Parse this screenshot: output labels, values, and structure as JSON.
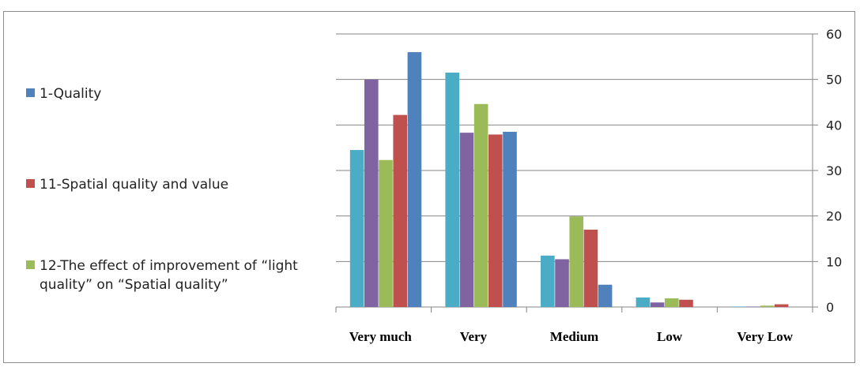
{
  "chart_data": {
    "type": "bar",
    "title": "",
    "xlabel": "",
    "ylabel": "",
    "categories": [
      "Very much",
      "Very",
      "Medium",
      "Low",
      "Very Low"
    ],
    "y_axis_position": "right",
    "ylim": [
      0,
      60
    ],
    "yticks": [
      0,
      10,
      20,
      30,
      40,
      50,
      60
    ],
    "grid": true,
    "legend_position": "left",
    "series": [
      {
        "name": "",
        "color": "#4BACC6",
        "values": [
          34.5,
          51.5,
          11.3,
          2.1,
          0.1
        ]
      },
      {
        "name": "",
        "color": "#8064A2",
        "values": [
          50,
          38.3,
          10.5,
          1,
          0.1
        ]
      },
      {
        "name": "12-The effect of improvement of “light quality” on “Spatial quality”",
        "color": "#9BBB59",
        "values": [
          32.3,
          44.6,
          19.9,
          1.9,
          0.3
        ]
      },
      {
        "name": "11-Spatial quality and value",
        "color": "#C0504D",
        "values": [
          42.2,
          37.9,
          17,
          1.6,
          0.6
        ]
      },
      {
        "name": "1-Quality",
        "color": "#4F81BD",
        "values": [
          56,
          38.5,
          4.9,
          0,
          0
        ]
      }
    ]
  },
  "legend": {
    "items": [
      {
        "label": "1-Quality",
        "color": "#4F81BD"
      },
      {
        "label": "11-Spatial quality and value",
        "color": "#C0504D"
      },
      {
        "label": "12-The effect of improvement of “light quality” on “Spatial quality”",
        "color": "#9BBB59"
      }
    ]
  }
}
